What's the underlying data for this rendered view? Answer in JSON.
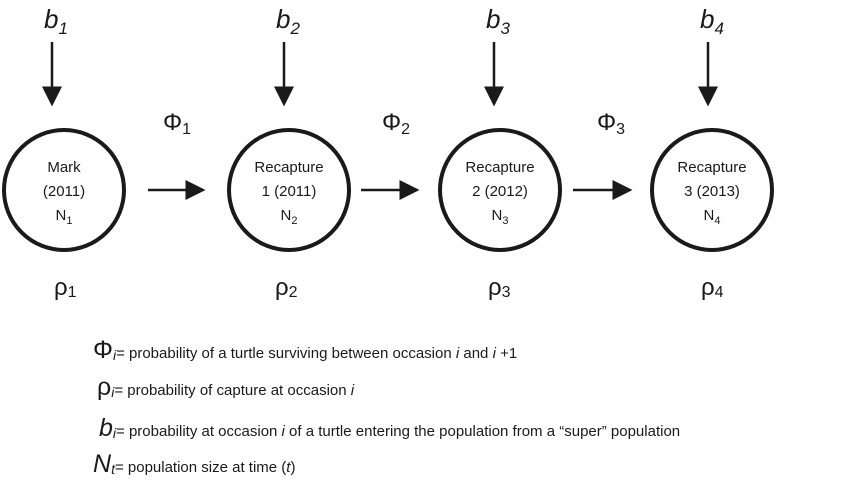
{
  "colors": {
    "ink": "#1a1a1a",
    "background": "#ffffff"
  },
  "occasions": [
    {
      "b_symbol": "b",
      "b_index": "1",
      "lines": [
        "Mark",
        "(2011)"
      ],
      "n_symbol": "N",
      "n_index": "1",
      "rho_symbol": "ρ",
      "rho_index": "1"
    },
    {
      "b_symbol": "b",
      "b_index": "2",
      "lines": [
        "Recapture",
        "1 (2011)"
      ],
      "n_symbol": "N",
      "n_index": "2",
      "rho_symbol": "ρ",
      "rho_index": "2"
    },
    {
      "b_symbol": "b",
      "b_index": "3",
      "lines": [
        "Recapture",
        "2 (2012)"
      ],
      "n_symbol": "N",
      "n_index": "3",
      "rho_symbol": "ρ",
      "rho_index": "3"
    },
    {
      "b_symbol": "b",
      "b_index": "4",
      "lines": [
        "Recapture",
        "3 (2013)"
      ],
      "n_symbol": "N",
      "n_index": "4",
      "rho_symbol": "ρ",
      "rho_index": "4"
    }
  ],
  "transitions": [
    {
      "symbol": "Φ",
      "index": "1"
    },
    {
      "symbol": "Φ",
      "index": "2"
    },
    {
      "symbol": "Φ",
      "index": "3"
    }
  ],
  "legend": {
    "phi": {
      "symbol": "Φ",
      "sub": "i",
      "text_1": "= probability of a turtle surviving between occasion ",
      "var_1": "i",
      "text_2": " and ",
      "var_2": "i",
      "text_3": " +1"
    },
    "rho": {
      "symbol": "ρ",
      "sub": "i",
      "text_1": "= probability of capture at occasion ",
      "var_1": "i"
    },
    "b": {
      "symbol": "b",
      "sub": "i",
      "text_1": "= probability at occasion ",
      "var_1": "i",
      "text_2": "  of a turtle entering the population from a “super” population"
    },
    "n": {
      "symbol": "N",
      "sub": "t",
      "text_1": "= population size at time (",
      "var_1": "t",
      "text_2": ")"
    }
  }
}
